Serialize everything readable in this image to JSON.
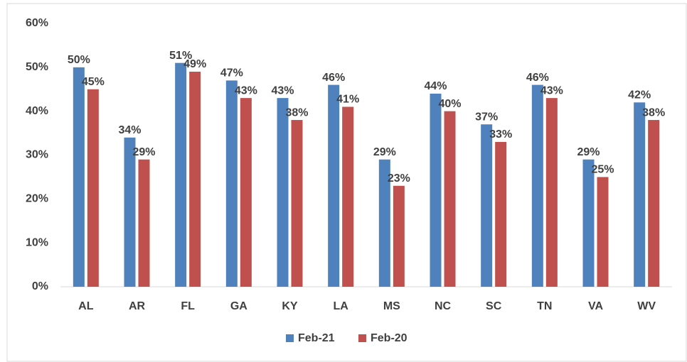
{
  "chart_data": {
    "type": "bar",
    "categories": [
      "AL",
      "AR",
      "FL",
      "GA",
      "KY",
      "LA",
      "MS",
      "NC",
      "SC",
      "TN",
      "VA",
      "WV"
    ],
    "series": [
      {
        "name": "Feb-21",
        "color": "#4f81bd",
        "values": [
          50,
          34,
          51,
          47,
          43,
          46,
          29,
          44,
          37,
          46,
          29,
          42
        ],
        "value_labels": [
          "50%",
          "34%",
          "51%",
          "47%",
          "43%",
          "46%",
          "29%",
          "44%",
          "37%",
          "46%",
          "29%",
          "42%"
        ]
      },
      {
        "name": "Feb-20",
        "color": "#c0504d",
        "values": [
          45,
          29,
          49,
          43,
          38,
          41,
          23,
          40,
          33,
          43,
          25,
          38
        ],
        "value_labels": [
          "45%",
          "29%",
          "49%",
          "43%",
          "38%",
          "41%",
          "23%",
          "40%",
          "33%",
          "43%",
          "25%",
          "38%"
        ]
      }
    ],
    "ylim": [
      0,
      60
    ],
    "yticks": [
      {
        "value": 0,
        "label": "0%"
      },
      {
        "value": 10,
        "label": "10%"
      },
      {
        "value": 20,
        "label": "20%"
      },
      {
        "value": 30,
        "label": "30%"
      },
      {
        "value": 40,
        "label": "40%"
      },
      {
        "value": 50,
        "label": "50%"
      },
      {
        "value": 60,
        "label": "60%"
      }
    ],
    "grid": false,
    "legend": "bottom"
  }
}
